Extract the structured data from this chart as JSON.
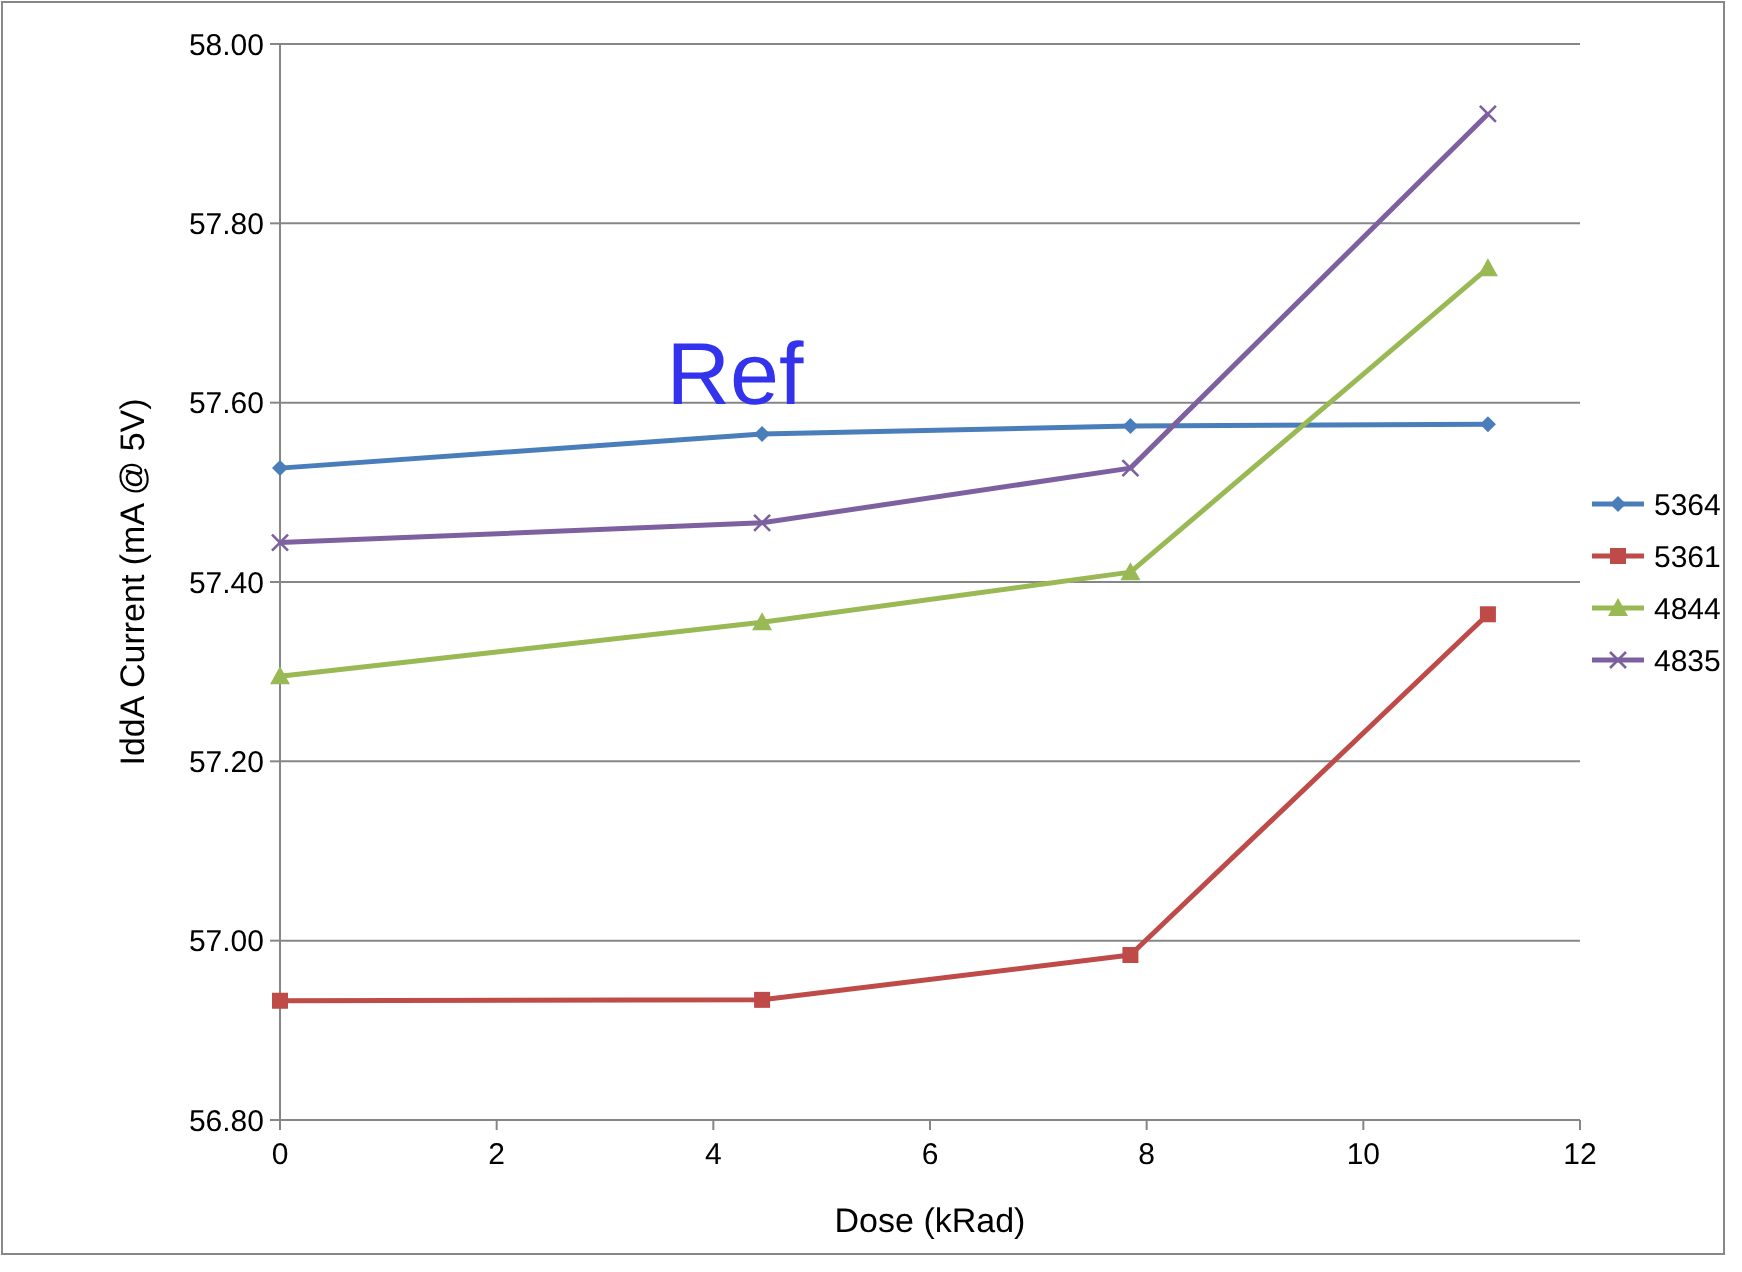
{
  "chart_data": {
    "type": "line",
    "xlabel": "Dose (kRad)",
    "ylabel": "IddA Current (mA @ 5V)",
    "annotations": [
      "Ref"
    ],
    "x": [
      0,
      4.45,
      7.85,
      11.15
    ],
    "series": [
      {
        "name": "5364",
        "color": "#4a7ebb",
        "marker": "diamond",
        "values": [
          57.527,
          57.565,
          57.574,
          57.576
        ]
      },
      {
        "name": "5361",
        "color": "#be4b48",
        "marker": "square",
        "values": [
          56.933,
          56.934,
          56.984,
          57.364
        ]
      },
      {
        "name": "4844",
        "color": "#98b954",
        "marker": "triangle",
        "values": [
          57.295,
          57.355,
          57.411,
          57.75
        ]
      },
      {
        "name": "4835",
        "color": "#7d60a0",
        "marker": "cross",
        "values": [
          57.444,
          57.466,
          57.527,
          57.922
        ]
      }
    ],
    "xlim": [
      0,
      12
    ],
    "xticks": [
      0,
      2,
      4,
      6,
      8,
      10,
      12
    ],
    "ylim": [
      56.8,
      58
    ],
    "yticks": [
      {
        "value": 56.8,
        "label": "56.80"
      },
      {
        "value": 57,
        "label": "57.00"
      },
      {
        "value": 57.2,
        "label": "57.20"
      },
      {
        "value": 57.4,
        "label": "57.40"
      },
      {
        "value": 57.6,
        "label": "57.60"
      },
      {
        "value": 57.8,
        "label": "57.80"
      },
      {
        "value": 58,
        "label": "58.00"
      }
    ],
    "grid": "y",
    "legend": "right",
    "line_style": "solid"
  }
}
